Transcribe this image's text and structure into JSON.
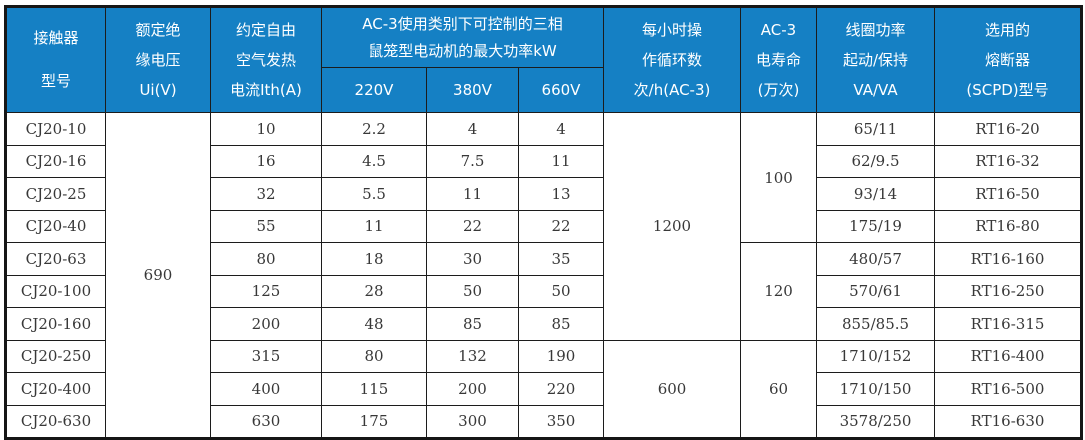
{
  "colors": {
    "header_bg": "#1580c4",
    "header_text": "#ffffff",
    "border": "#1c1c1c",
    "body_text": "#383838"
  },
  "table": {
    "header": {
      "model": "接触器\n型号",
      "ui": "额定绝\n缘电压\nUi(V)",
      "ith": "约定自由\n空气发热\n电流Ith(A)",
      "power_group": "AC-3使用类别下可控制的三相\n鼠笼型电动机的最大功率kW",
      "v220": "220V",
      "v380": "380V",
      "v660": "660V",
      "cycles": "每小时操\n作循环数\n次/h(AC-3)",
      "life": "AC-3\n电寿命\n(万次)",
      "coil": "线圈功率\n起动/保持\nVA/VA",
      "fuse": "选用的\n熔断器\n(SCPD)型号"
    },
    "rows": [
      {
        "model": "CJ20-10",
        "ith": "10",
        "kw220": "2.2",
        "kw380": "4",
        "kw660": "4",
        "coil": "65/11",
        "fuse": "RT16-20"
      },
      {
        "model": "CJ20-16",
        "ith": "16",
        "kw220": "4.5",
        "kw380": "7.5",
        "kw660": "11",
        "coil": "62/9.5",
        "fuse": "RT16-32"
      },
      {
        "model": "CJ20-25",
        "ith": "32",
        "kw220": "5.5",
        "kw380": "11",
        "kw660": "13",
        "coil": "93/14",
        "fuse": "RT16-50"
      },
      {
        "model": "CJ20-40",
        "ith": "55",
        "kw220": "11",
        "kw380": "22",
        "kw660": "22",
        "coil": "175/19",
        "fuse": "RT16-80"
      },
      {
        "model": "CJ20-63",
        "ith": "80",
        "kw220": "18",
        "kw380": "30",
        "kw660": "35",
        "coil": "480/57",
        "fuse": "RT16-160"
      },
      {
        "model": "CJ20-100",
        "ith": "125",
        "kw220": "28",
        "kw380": "50",
        "kw660": "50",
        "coil": "570/61",
        "fuse": "RT16-250"
      },
      {
        "model": "CJ20-160",
        "ith": "200",
        "kw220": "48",
        "kw380": "85",
        "kw660": "85",
        "coil": "855/85.5",
        "fuse": "RT16-315"
      },
      {
        "model": "CJ20-250",
        "ith": "315",
        "kw220": "80",
        "kw380": "132",
        "kw660": "190",
        "coil": "1710/152",
        "fuse": "RT16-400"
      },
      {
        "model": "CJ20-400",
        "ith": "400",
        "kw220": "115",
        "kw380": "200",
        "kw660": "220",
        "coil": "1710/150",
        "fuse": "RT16-500"
      },
      {
        "model": "CJ20-630",
        "ith": "630",
        "kw220": "175",
        "kw380": "300",
        "kw660": "350",
        "coil": "3578/250",
        "fuse": "RT16-630"
      }
    ],
    "merged": {
      "ui": [
        {
          "value": "690",
          "start": 0,
          "span": 10
        }
      ],
      "cycles": [
        {
          "value": "1200",
          "start": 0,
          "span": 7
        },
        {
          "value": "600",
          "start": 7,
          "span": 3
        }
      ],
      "life": [
        {
          "value": "100",
          "start": 0,
          "span": 4
        },
        {
          "value": "120",
          "start": 4,
          "span": 3
        },
        {
          "value": "60",
          "start": 7,
          "span": 3
        }
      ]
    }
  }
}
